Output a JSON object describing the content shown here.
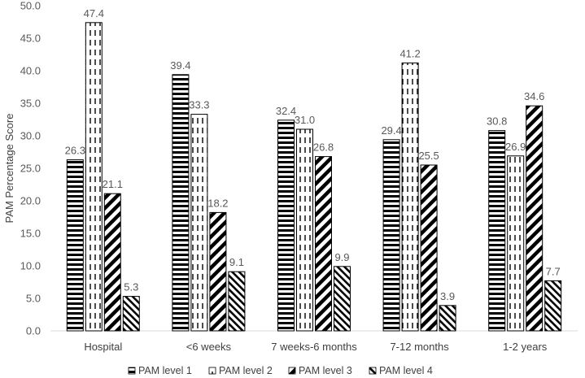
{
  "chart_data": {
    "type": "bar",
    "title": "",
    "xlabel": "",
    "ylabel": "PAM Percentage Score",
    "ylim": [
      0,
      50
    ],
    "yticks": [
      "0.0",
      "5.0",
      "10.0",
      "15.0",
      "20.0",
      "25.0",
      "30.0",
      "35.0",
      "40.0",
      "45.0",
      "50.0"
    ],
    "categories": [
      "Hospital",
      "<6 weeks",
      "7 weeks-6 months",
      "7-12 months",
      "1-2 years"
    ],
    "series": [
      {
        "name": "PAM level 1",
        "pattern": "horizontal-stripes",
        "values": [
          26.3,
          39.4,
          32.4,
          29.4,
          30.8
        ],
        "labels": [
          "26.3",
          "39.4",
          "32.4",
          "29.4",
          "30.8"
        ]
      },
      {
        "name": "PAM level 2",
        "pattern": "vertical-dashes",
        "values": [
          47.4,
          33.3,
          31.0,
          41.2,
          26.9
        ],
        "labels": [
          "47.4",
          "33.3",
          "31.0",
          "41.2",
          "26.9"
        ]
      },
      {
        "name": "PAM level 3",
        "pattern": "wide-diagonal",
        "values": [
          21.1,
          18.2,
          26.8,
          25.5,
          34.6
        ],
        "labels": [
          "21.1",
          "18.2",
          "26.8",
          "25.5",
          "34.6"
        ]
      },
      {
        "name": "PAM level 4",
        "pattern": "narrow-diagonal",
        "values": [
          5.3,
          9.1,
          9.9,
          3.9,
          7.7
        ],
        "labels": [
          "5.3",
          "9.1",
          "9.9",
          "3.9",
          "7.7"
        ]
      }
    ],
    "grid": false,
    "legend": "bottom"
  },
  "colors": {
    "bar_stroke": "#000000",
    "axis": "#d9d9d9",
    "text": "#595959"
  }
}
